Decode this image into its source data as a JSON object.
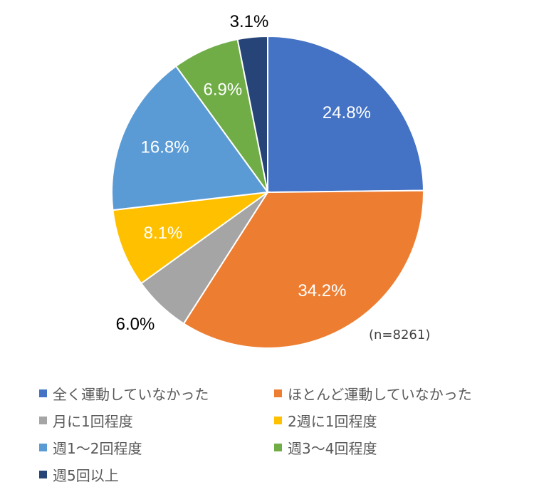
{
  "chart_data": {
    "type": "pie",
    "note": "(n=8261)",
    "slices": [
      {
        "label": "全く運動していなかった",
        "value": 24.8,
        "display": "24.8%",
        "color": "#4472C4",
        "label_color": "#FFFFFF"
      },
      {
        "label": "ほとんど運動していなかった",
        "value": 34.2,
        "display": "34.2%",
        "color": "#ED7D31",
        "label_color": "#FFFFFF"
      },
      {
        "label": "月に1回程度",
        "value": 6.0,
        "display": "6.0%",
        "color": "#A5A5A5",
        "label_color": "#000000"
      },
      {
        "label": "2週に1回程度",
        "value": 8.1,
        "display": "8.1%",
        "color": "#FFC000",
        "label_color": "#FFFFFF"
      },
      {
        "label": "週1〜2回程度",
        "value": 16.8,
        "display": "16.8%",
        "color": "#5B9BD5",
        "label_color": "#FFFFFF"
      },
      {
        "label": "週3〜4回程度",
        "value": 6.9,
        "display": "6.9%",
        "color": "#70AD47",
        "label_color": "#FFFFFF"
      },
      {
        "label": "週5回以上",
        "value": 3.1,
        "display": "3.1%",
        "color": "#264478",
        "label_color": "#000000"
      }
    ]
  }
}
